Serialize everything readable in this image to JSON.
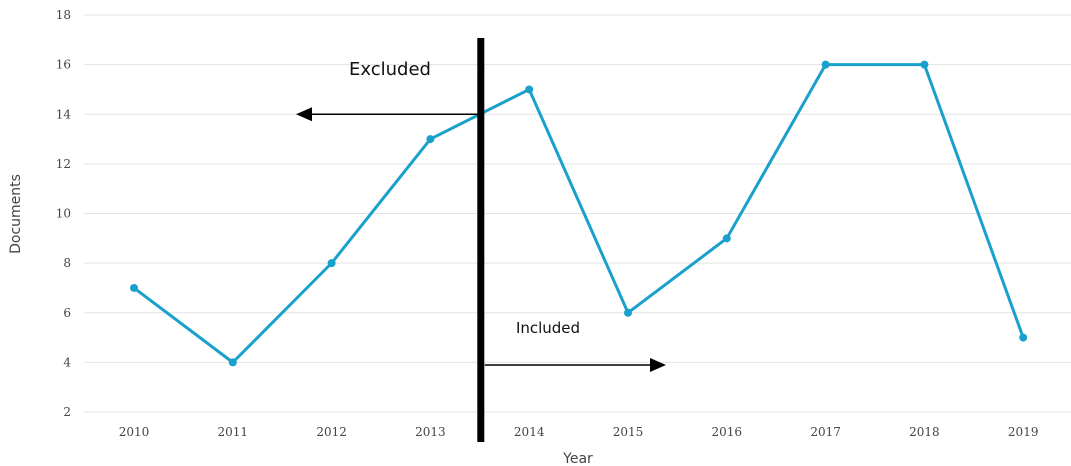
{
  "chart_data": {
    "type": "line",
    "title": "",
    "xlabel": "Year",
    "ylabel": "Documents",
    "categories": [
      "2010",
      "2011",
      "2012",
      "2013",
      "2014",
      "2015",
      "2016",
      "2017",
      "2018",
      "2019"
    ],
    "series": [
      {
        "values": [
          7,
          4,
          8,
          13,
          15,
          6,
          9,
          16,
          16,
          5
        ]
      }
    ],
    "ylim": [
      2,
      18
    ],
    "yticks": [
      2,
      4,
      6,
      8,
      10,
      12,
      14,
      16,
      18
    ],
    "grid": "horizontal",
    "colors": {
      "series": "#1aa0cc",
      "grid": "#e3e3e3",
      "divider": "#000000"
    },
    "annotations": {
      "divider_between": [
        "2013",
        "2014"
      ],
      "excluded": {
        "text": "Excluded",
        "arrow": "left"
      },
      "included": {
        "text": "Included",
        "arrow": "right"
      }
    }
  }
}
